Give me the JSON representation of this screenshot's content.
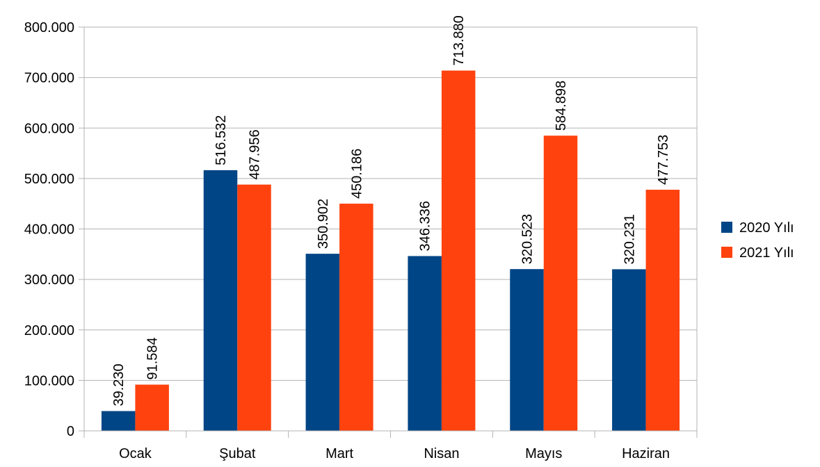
{
  "chart_data": {
    "type": "bar",
    "title": "",
    "xlabel": "",
    "ylabel": "",
    "categories": [
      "Ocak",
      "Şubat",
      "Mart",
      "Nisan",
      "Mayıs",
      "Haziran"
    ],
    "series": [
      {
        "name": "2020 Yılı",
        "color": "#004586",
        "values": [
          39230,
          516532,
          350902,
          346336,
          320523,
          320231
        ],
        "labels": [
          "39.230",
          "516.532",
          "350.902",
          "346.336",
          "320.523",
          "320.231"
        ]
      },
      {
        "name": "2021 Yılı",
        "color": "#ff420e",
        "values": [
          91584,
          487956,
          450186,
          713880,
          584898,
          477753
        ],
        "labels": [
          "91.584",
          "487.956",
          "450.186",
          "713.880",
          "584.898",
          "477.753"
        ]
      }
    ],
    "ylim": [
      0,
      800000
    ],
    "yticks": [
      0,
      100000,
      200000,
      300000,
      400000,
      500000,
      600000,
      700000,
      800000
    ],
    "ytick_labels": [
      "0",
      "100.000",
      "200.000",
      "300.000",
      "400.000",
      "500.000",
      "600.000",
      "700.000",
      "800.000"
    ],
    "grid": true,
    "legend_position": "right"
  }
}
